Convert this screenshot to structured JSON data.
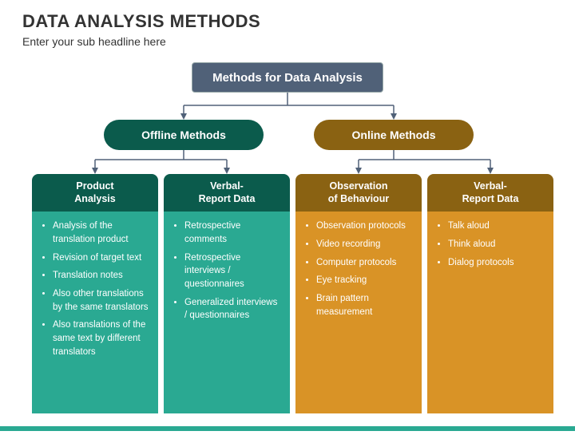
{
  "title": "DATA ANALYSIS METHODS",
  "subtitle": "Enter your sub headline here",
  "root_label": "Methods for Data Analysis",
  "branches": {
    "offline": {
      "label": "Offline Methods",
      "color_dark": "#0b5b4c",
      "color_light": "#2aa992"
    },
    "online": {
      "label": "Online Methods",
      "color_dark": "#8a6212",
      "color_light": "#d99326"
    }
  },
  "cards": [
    {
      "header": "Product\nAnalysis",
      "items": [
        "Analysis of the translation product",
        "Revision of target text",
        "Translation notes",
        "Also other translations by the same translators",
        "Also translations of the same text by different translators"
      ]
    },
    {
      "header": "Verbal-\nReport Data",
      "items": [
        "Retrospective comments",
        "Retrospective interviews / questionnaires",
        "Generalized interviews / questionnaires"
      ]
    },
    {
      "header": "Observation\nof Behaviour",
      "items": [
        "Observation protocols",
        "Video recording",
        "Computer protocols",
        "Eye tracking",
        "Brain pattern measurement"
      ]
    },
    {
      "header": "Verbal-\nReport Data",
      "items": [
        "Talk aloud",
        "Think aloud",
        "Dialog protocols"
      ]
    }
  ],
  "colors": {
    "root_bg": "#506178",
    "connector": "#506178",
    "footer": "#2aa992"
  }
}
